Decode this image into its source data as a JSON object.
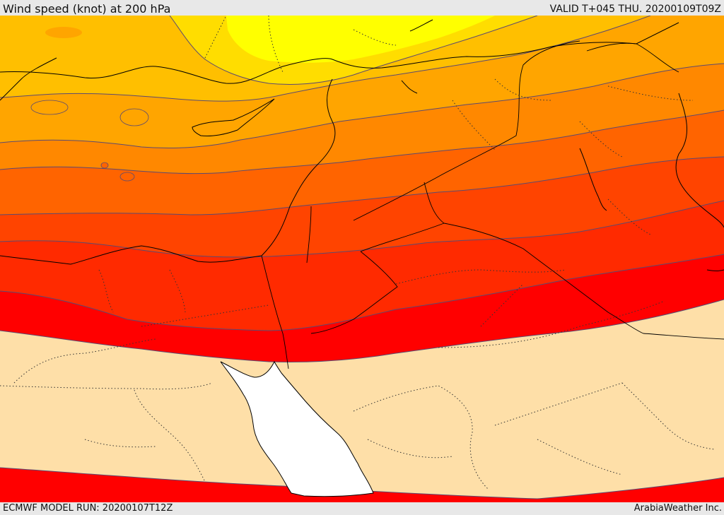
{
  "header": {
    "title": "Wind speed (knot) at 200 hPa",
    "valid_time": "VALID T+045 THU. 20200109T09Z"
  },
  "footer": {
    "model_run": "ECMWF MODEL RUN: 20200107T12Z",
    "credit": "ArabiaWeather Inc."
  },
  "map": {
    "variable": "wind speed",
    "level_hpa": 200,
    "units": "knot",
    "colors": {
      "jet_core": "#ff0000",
      "band_dark_red": "#ff2a00",
      "band_red_orange": "#ff4400",
      "band_orange_dark": "#ff6400",
      "band_orange": "#ff8800",
      "band_amber": "#ffa500",
      "band_gold": "#ffbf00",
      "band_yellow_light": "#ffdd00",
      "band_yellow": "#ffff00",
      "low_wind": "#fedfa8",
      "sea": "#ffffff",
      "contour": "#5c4a70",
      "borders": "#000000"
    }
  }
}
